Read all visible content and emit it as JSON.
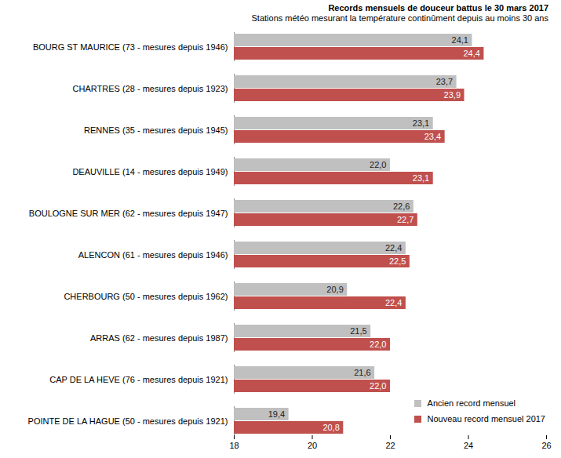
{
  "chart_data": {
    "type": "bar",
    "orientation": "horizontal",
    "title": "Records mensuels de douceur battus le 30 mars 2017",
    "subtitle": "Stations météo mesurant la température continûment depuis au moins 30 ans",
    "categories": [
      "BOURG ST MAURICE (73 - mesures depuis 1946)",
      "CHARTRES (28 - mesures depuis 1923)",
      "RENNES (35 - mesures depuis 1945)",
      "DEAUVILLE (14 - mesures depuis 1949)",
      "BOULOGNE SUR MER (62 - mesures depuis 1947)",
      "ALENCON (61 - mesures depuis 1946)",
      "CHERBOURG (50 - mesures depuis 1962)",
      "ARRAS (62 - mesures depuis 1987)",
      "CAP DE LA HEVE (76 - mesures depuis 1921)",
      "POINTE DE LA HAGUE (50 - mesures depuis 1921)"
    ],
    "series": [
      {
        "name": "Ancien record mensuel",
        "color": "#c0c0c0",
        "values": [
          24.1,
          23.7,
          23.1,
          22.0,
          22.6,
          22.4,
          20.9,
          21.5,
          21.6,
          19.4
        ],
        "value_labels": [
          "24,1",
          "23,7",
          "23,1",
          "22,0",
          "22,6",
          "22,4",
          "20,9",
          "21,5",
          "21,6",
          "19,4"
        ]
      },
      {
        "name": "Nouveau record mensuel 2017",
        "color": "#c0504d",
        "values": [
          24.4,
          23.9,
          23.4,
          23.1,
          22.7,
          22.5,
          22.4,
          22.0,
          22.0,
          20.8
        ],
        "value_labels": [
          "24,4",
          "23,9",
          "23,4",
          "23,1",
          "22,7",
          "22,5",
          "22,4",
          "22,0",
          "22,0",
          "20,8"
        ]
      }
    ],
    "xlim": [
      18,
      26
    ],
    "xticks": [
      18,
      20,
      22,
      24,
      26
    ],
    "grid": false,
    "data_labels": true,
    "legend": "bottom-right"
  }
}
